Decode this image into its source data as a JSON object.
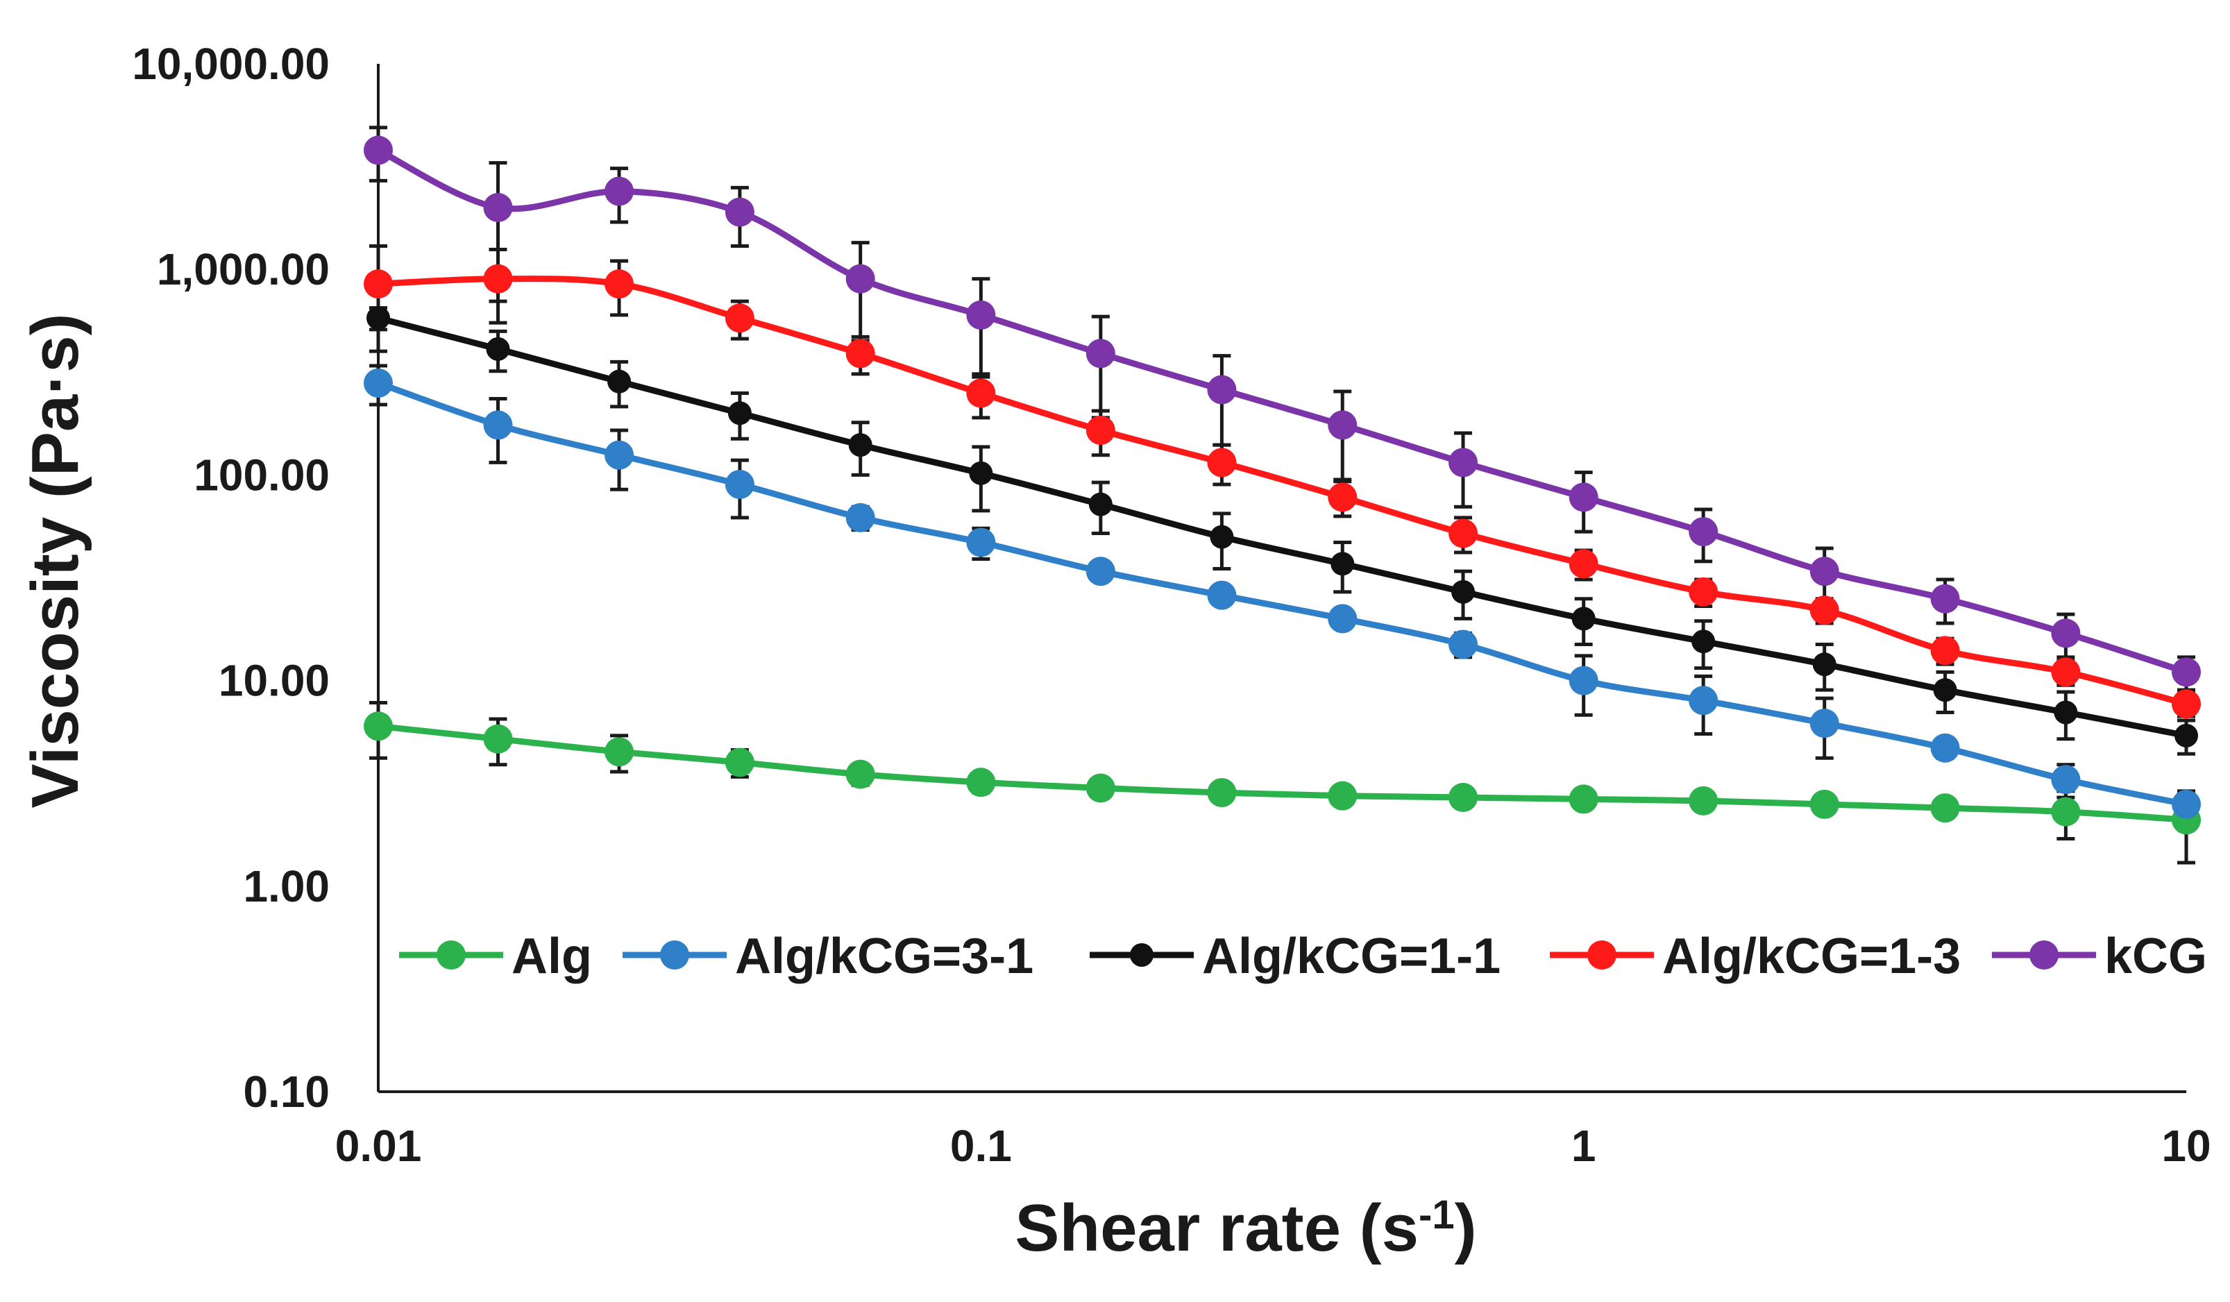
{
  "chart_data": {
    "type": "line",
    "title": "",
    "xlabel": "Shear rate (s",
    "xlabel_sup": "-1",
    "xlabel_close": ")",
    "ylabel": "Viscosity (Pa·s)",
    "xscale": "log",
    "yscale": "log",
    "xlim": [
      0.01,
      10
    ],
    "ylim": [
      0.1,
      10000
    ],
    "x_ticks": [
      {
        "value": 0.01,
        "label": "0.01"
      },
      {
        "value": 0.1,
        "label": "0.1"
      },
      {
        "value": 1,
        "label": "1"
      },
      {
        "value": 10,
        "label": "10"
      }
    ],
    "y_ticks": [
      {
        "value": 10000,
        "label": "10,000.00"
      },
      {
        "value": 1000,
        "label": "1,000.00"
      },
      {
        "value": 100,
        "label": "100.00"
      },
      {
        "value": 10,
        "label": "10.00"
      },
      {
        "value": 1,
        "label": "1.00"
      },
      {
        "value": 0.1,
        "label": "0.10"
      }
    ],
    "legend_position": "inside-bottom",
    "x": [
      0.01,
      0.0158,
      0.0251,
      0.0398,
      0.0631,
      0.1,
      0.158,
      0.251,
      0.398,
      0.631,
      1,
      1.58,
      2.51,
      3.98,
      6.31,
      10
    ],
    "series": [
      {
        "name": "Alg",
        "color": "#2bb24c",
        "values": [
          6.0,
          5.2,
          4.5,
          4.0,
          3.5,
          3.2,
          3.0,
          2.85,
          2.75,
          2.7,
          2.65,
          2.6,
          2.5,
          2.4,
          2.3,
          2.1
        ],
        "errors": [
          1.8,
          1.3,
          0.9,
          0.6,
          0.4,
          0.35,
          0.3,
          0.25,
          0.2,
          0.2,
          0.2,
          0.2,
          0.2,
          0.25,
          0.6,
          0.8
        ]
      },
      {
        "name": "Alg/kCG=3-1",
        "color": "#2f80c8",
        "values": [
          280,
          175,
          125,
          90,
          62,
          47,
          34,
          26,
          20,
          15,
          10,
          8,
          6.2,
          4.7,
          3.3,
          2.5
        ],
        "errors": [
          60,
          60,
          40,
          28,
          8,
          8,
          3,
          2,
          1.5,
          2,
          3.2,
          2.5,
          2,
          0.5,
          0.6,
          0.3
        ]
      },
      {
        "name": "Alg/kCG=1-1",
        "color": "#111111",
        "values": [
          580,
          410,
          285,
          200,
          140,
          102,
          72,
          50,
          37,
          27,
          20,
          15.5,
          12,
          9,
          7,
          5.4
        ],
        "errors": [
          70,
          90,
          70,
          50,
          40,
          35,
          20,
          15,
          10,
          7,
          5,
          4,
          3,
          2,
          1.8,
          1
        ]
      },
      {
        "name": "Alg/kCG=1-3",
        "color": "#ff1a1a",
        "values": [
          850,
          900,
          850,
          580,
          390,
          250,
          165,
          115,
          78,
          52,
          37,
          27,
          22,
          14,
          11,
          7.7
        ],
        "errors": [
          450,
          350,
          250,
          120,
          80,
          60,
          40,
          25,
          15,
          10,
          6,
          4,
          3,
          2,
          1.5,
          1
        ]
      },
      {
        "name": "kCG",
        "color": "#7b35a8",
        "values": [
          3800,
          2000,
          2400,
          1900,
          900,
          600,
          390,
          260,
          175,
          115,
          78,
          53,
          34,
          25,
          17,
          11
        ],
        "errors": [
          1100,
          1300,
          700,
          600,
          450,
          300,
          200,
          120,
          80,
          45,
          25,
          15,
          10,
          6,
          4,
          2
        ]
      }
    ]
  }
}
